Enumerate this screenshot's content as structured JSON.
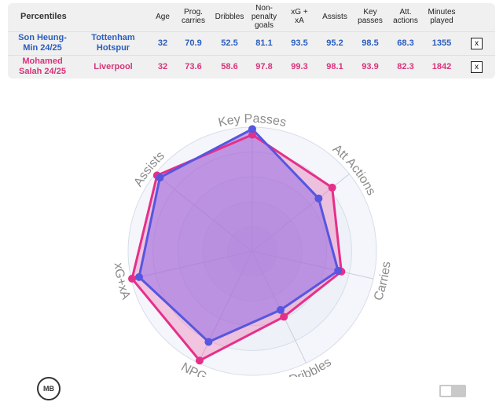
{
  "table": {
    "title": "Percentiles",
    "columns": [
      {
        "key": "age",
        "lines": [
          "Age"
        ]
      },
      {
        "key": "prog",
        "lines": [
          "Prog.",
          "carries"
        ]
      },
      {
        "key": "drib",
        "lines": [
          "Dribbles"
        ]
      },
      {
        "key": "npg",
        "lines": [
          "Non-",
          "penalty",
          "goals"
        ]
      },
      {
        "key": "xgxa",
        "lines": [
          "xG +",
          "xA"
        ]
      },
      {
        "key": "ast",
        "lines": [
          "Assists"
        ]
      },
      {
        "key": "kp",
        "lines": [
          "Key",
          "passes"
        ]
      },
      {
        "key": "att",
        "lines": [
          "Att.",
          "actions"
        ]
      },
      {
        "key": "min",
        "lines": [
          "Minutes",
          "played"
        ]
      }
    ],
    "rows": [
      {
        "player": [
          "Son Heung-",
          "Min 24/25"
        ],
        "team": [
          "Tottenham",
          "Hotspur"
        ],
        "values": [
          "32",
          "70.9",
          "52.5",
          "81.1",
          "93.5",
          "95.2",
          "98.5",
          "68.3",
          "1355"
        ],
        "color": "#2a5dbd",
        "remove_label": "x"
      },
      {
        "player": [
          "Mohamed",
          "Salah 24/25"
        ],
        "team": [
          "Liverpool"
        ],
        "values": [
          "32",
          "73.6",
          "58.6",
          "97.8",
          "99.3",
          "98.1",
          "93.9",
          "82.3",
          "1842"
        ],
        "color": "#d8337a",
        "remove_label": "x"
      }
    ]
  },
  "chart_data": {
    "type": "radar",
    "axes": [
      "Key Passes",
      "Att Actions",
      "Carries",
      "Dribbles",
      "NPG",
      "xG+xA",
      "Assists"
    ],
    "range": [
      0,
      100
    ],
    "series": [
      {
        "name": "Son Heung-Min 24/25",
        "values": [
          98.5,
          68.3,
          70.9,
          52.5,
          81.1,
          93.5,
          95.2
        ],
        "color": "#5656e0"
      },
      {
        "name": "Mohamed Salah 24/25",
        "values": [
          93.9,
          82.3,
          73.6,
          58.6,
          97.8,
          99.3,
          98.1
        ],
        "color": "#e5308a"
      }
    ]
  },
  "logo_text": "MB"
}
